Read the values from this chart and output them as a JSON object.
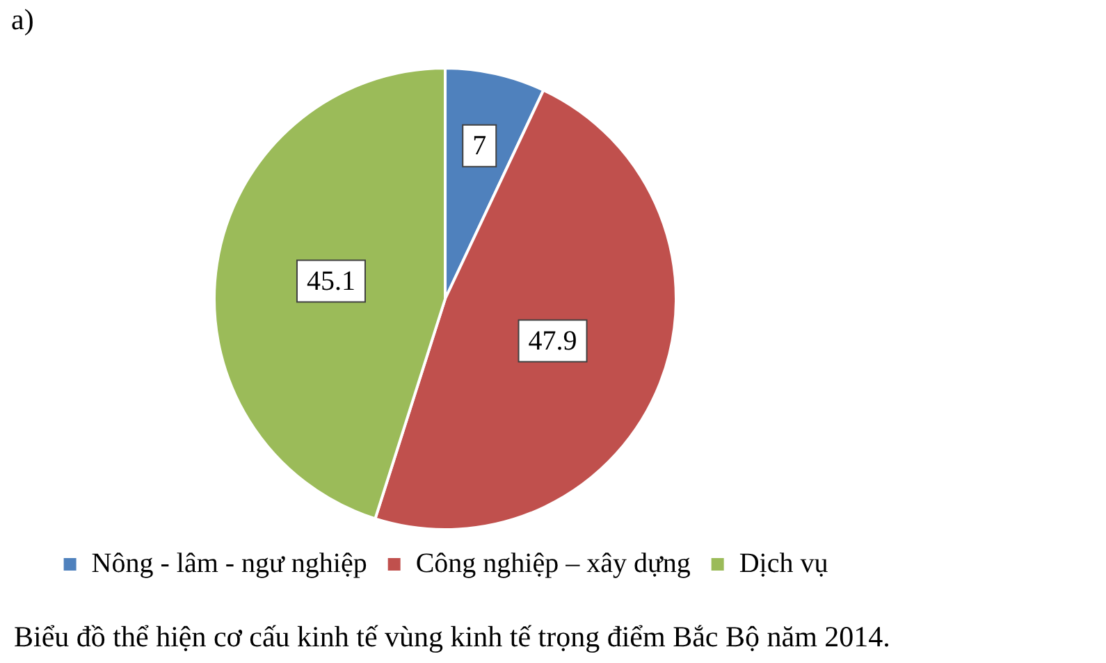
{
  "chart_data": {
    "type": "pie",
    "categories": [
      "Nông - lâm - ngư nghiệp",
      "Công nghiệp – xây dựng",
      "Dịch vụ"
    ],
    "values": [
      7,
      47.9,
      45.1
    ],
    "colors": [
      "#4f81bd",
      "#c0504d",
      "#9bbb59"
    ],
    "data_labels": true,
    "legend": "bottom",
    "annotations": [
      "a)",
      "Biểu đồ thể hiện cơ cấu kinh tế vùng kinh tế trọng điểm Bắc Bộ năm 2014."
    ]
  }
}
